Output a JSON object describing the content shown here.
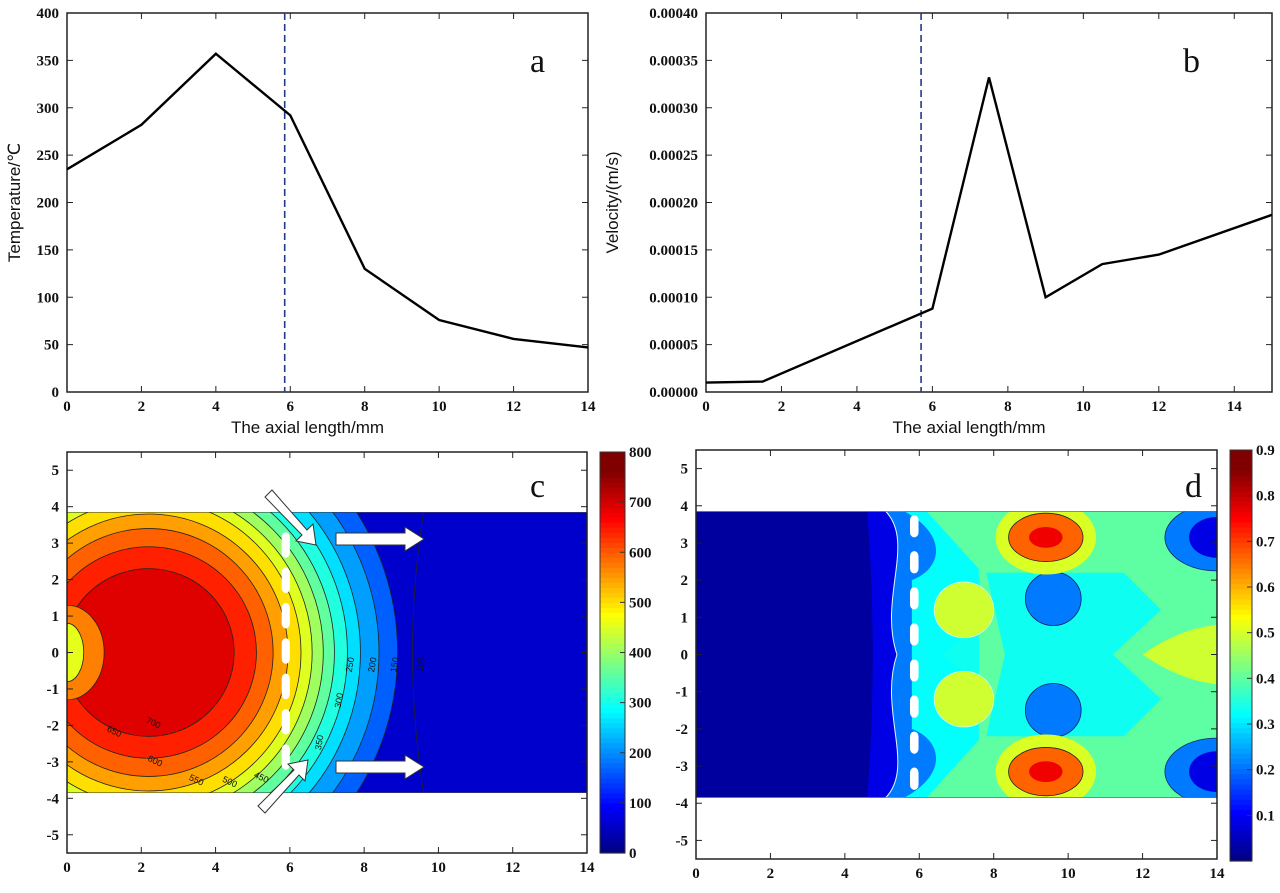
{
  "chart_data": [
    {
      "panel": "a",
      "type": "line",
      "xlabel": "The axial length/mm",
      "ylabel": "Temperature/℃",
      "xlim": [
        0,
        14
      ],
      "ylim": [
        0,
        400
      ],
      "xticks": [
        "0",
        "2",
        "4",
        "6",
        "8",
        "10",
        "12",
        "14"
      ],
      "yticks": [
        "0",
        "50",
        "100",
        "150",
        "200",
        "250",
        "300",
        "350",
        "400"
      ],
      "x": [
        0,
        2,
        4,
        6,
        8,
        10,
        12,
        14
      ],
      "y": [
        235,
        282,
        357,
        292,
        130,
        76,
        56,
        47
      ],
      "reference_line_x": 5.85,
      "reference_line_style": "dashed",
      "line_color": "#000000",
      "reference_color": "#1f3c88",
      "grid": false
    },
    {
      "panel": "b",
      "type": "line",
      "xlabel": "The axial length/mm",
      "ylabel": "Velocity/(m/s)",
      "xlim": [
        0,
        15
      ],
      "ylim": [
        0,
        0.0004
      ],
      "xticks": [
        "0",
        "2",
        "4",
        "6",
        "8",
        "10",
        "12",
        "14"
      ],
      "yticks": [
        "0.00000",
        "0.00005",
        "0.00010",
        "0.00015",
        "0.00020",
        "0.00025",
        "0.00030",
        "0.00035",
        "0.00040"
      ],
      "x": [
        0,
        1.5,
        6,
        7.5,
        9,
        10.5,
        12,
        15
      ],
      "y": [
        1e-05,
        1.1e-05,
        8.8e-05,
        0.000332,
        0.0001,
        0.000135,
        0.000145,
        0.000187
      ],
      "reference_line_x": 5.7,
      "reference_line_style": "dashed",
      "line_color": "#000000",
      "reference_color": "#1f3c88",
      "grid": false
    },
    {
      "panel": "c",
      "type": "heatmap",
      "colormap": "jet",
      "xlim": [
        0,
        14
      ],
      "ylim": [
        -5.5,
        5.5
      ],
      "xticks": [
        "0",
        "2",
        "4",
        "6",
        "8",
        "10",
        "12",
        "14"
      ],
      "yticks": [
        "-5",
        "-4",
        "-3",
        "-2",
        "-1",
        "0",
        "1",
        "2",
        "3",
        "4",
        "5"
      ],
      "colorbar_range": [
        0,
        800
      ],
      "colorbar_ticks": [
        "0",
        "100",
        "200",
        "300",
        "400",
        "500",
        "600",
        "700",
        "800"
      ],
      "contour_labels": [
        "700",
        "650",
        "600",
        "550",
        "500",
        "450",
        "350",
        "300",
        "250",
        "200",
        "150",
        "100"
      ],
      "grid": false
    },
    {
      "panel": "d",
      "type": "heatmap",
      "colormap": "jet",
      "xlim": [
        0,
        14
      ],
      "ylim": [
        -5.5,
        5.5
      ],
      "xticks": [
        "0",
        "2",
        "4",
        "6",
        "8",
        "10",
        "12",
        "14"
      ],
      "yticks": [
        "-5",
        "-4",
        "-3",
        "-2",
        "-1",
        "0",
        "1",
        "2",
        "3",
        "4",
        "5"
      ],
      "colorbar_range": [
        0,
        0.9
      ],
      "colorbar_ticks": [
        "0.1",
        "0.2",
        "0.3",
        "0.4",
        "0.5",
        "0.6",
        "0.7",
        "0.8",
        "0.9"
      ],
      "grid": false
    }
  ]
}
